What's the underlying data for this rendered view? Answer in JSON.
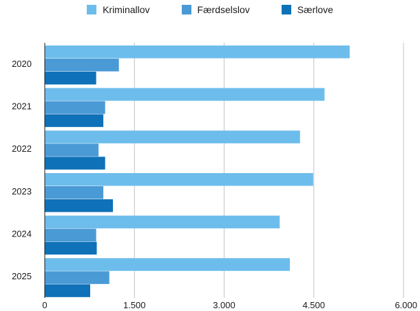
{
  "chart_data": {
    "type": "bar",
    "orientation": "horizontal",
    "categories": [
      "2020",
      "2021",
      "2022",
      "2023",
      "2024",
      "2025"
    ],
    "series": [
      {
        "name": "Kriminallov",
        "color": "#6dbdec",
        "values": [
          5100,
          4680,
          4270,
          4490,
          3930,
          4100
        ]
      },
      {
        "name": "Færdselslov",
        "color": "#4a9ad6",
        "values": [
          1240,
          1010,
          900,
          980,
          860,
          1080
        ]
      },
      {
        "name": "Særlove",
        "color": "#0f71b8",
        "values": [
          860,
          980,
          1010,
          1140,
          870,
          760
        ]
      }
    ],
    "xlim": [
      0,
      6000
    ],
    "xticks": [
      0,
      1500,
      3000,
      4500,
      6000
    ],
    "xtick_labels": [
      "0",
      "1.500",
      "3.000",
      "4.500",
      "6.000"
    ],
    "grid": "vertical",
    "legend_position": "top-center"
  }
}
